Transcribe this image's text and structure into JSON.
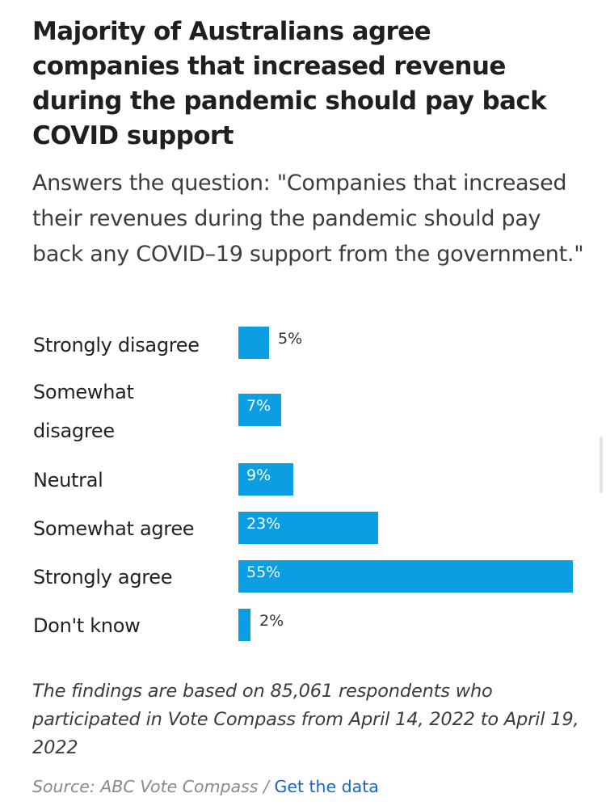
{
  "title": "Majority of Australians agree companies that increased revenue during the pandemic should pay back COVID support",
  "subtitle": "Answers the question: \"Companies that increased their revenues during the pandemic should pay back any COVID–19 support from the government.\"",
  "chart_data": {
    "type": "bar",
    "orientation": "horizontal",
    "categories": [
      "Strongly disagree",
      "Somewhat disagree",
      "Neutral",
      "Somewhat agree",
      "Strongly agree",
      "Don't know"
    ],
    "values": [
      5,
      7,
      9,
      23,
      55,
      2
    ],
    "value_labels": [
      "5%",
      "7%",
      "9%",
      "23%",
      "55%",
      "2%"
    ],
    "unit": "%",
    "bar_color": "#0b9ee3",
    "xlim": [
      0,
      55
    ],
    "grid": false,
    "legend": "none"
  },
  "footnote": "The findings are based on 85,061  respondents who participated in Vote Compass from April 14, 2022 to April 19, 2022",
  "source": {
    "text": "Source: ABC Vote Compass",
    "separator": " / ",
    "link_label": "Get the data",
    "link_color": "#1368c4"
  }
}
